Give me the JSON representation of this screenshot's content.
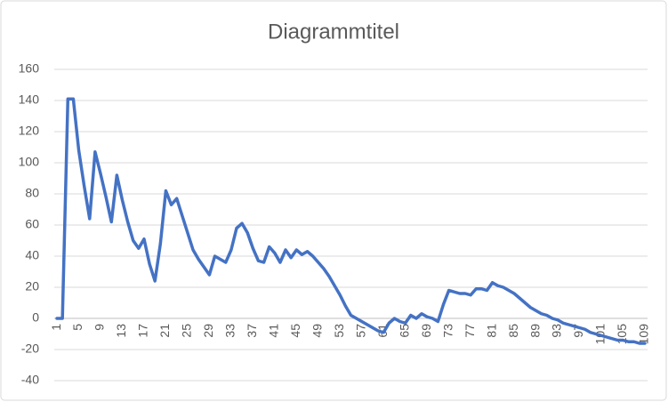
{
  "chart_data": {
    "type": "line",
    "title": "Diagrammtitel",
    "categories": [
      "1",
      null,
      null,
      null,
      "5",
      null,
      null,
      null,
      "9",
      null,
      null,
      null,
      "13",
      null,
      null,
      null,
      "17",
      null,
      null,
      null,
      "21",
      null,
      null,
      null,
      "25",
      null,
      null,
      null,
      "29",
      null,
      null,
      null,
      "33",
      null,
      null,
      null,
      "37",
      null,
      null,
      null,
      "41",
      null,
      null,
      null,
      "45",
      null,
      null,
      null,
      "49",
      null,
      null,
      null,
      "53",
      null,
      null,
      null,
      "57",
      null,
      null,
      null,
      "61",
      null,
      null,
      null,
      "65",
      null,
      null,
      null,
      "69",
      null,
      null,
      null,
      "73",
      null,
      null,
      null,
      "77",
      null,
      null,
      null,
      "81",
      null,
      null,
      null,
      "85",
      null,
      null,
      null,
      "89",
      null,
      null,
      null,
      "93",
      null,
      null,
      null,
      "97",
      null,
      null,
      null,
      "101",
      null,
      null,
      null,
      "105",
      null,
      null,
      null,
      "109"
    ],
    "series": [
      {
        "color": "#4472c4",
        "values": [
          0,
          0,
          141,
          141,
          108,
          85,
          64,
          107,
          93,
          78,
          62,
          92,
          76,
          62,
          50,
          45,
          51,
          35,
          24,
          48,
          82,
          73,
          77,
          66,
          55,
          44,
          38,
          33,
          28,
          40,
          38,
          36,
          44,
          58,
          61,
          55,
          45,
          37,
          36,
          46,
          42,
          36,
          44,
          39,
          44,
          41,
          43,
          40,
          36,
          32,
          27,
          21,
          15,
          8,
          2,
          0,
          -2,
          -4,
          -6,
          -8,
          -9,
          -3,
          0,
          -2,
          -3,
          2,
          0,
          3,
          1,
          0,
          -2,
          9,
          18,
          17,
          16,
          16,
          15,
          19,
          19,
          18,
          23,
          21,
          20,
          18,
          16,
          13,
          10,
          7,
          5,
          3,
          2,
          0,
          -1,
          -3,
          -4,
          -5,
          -6,
          -7,
          -9,
          -10,
          -11,
          -12,
          -13,
          -14,
          -14,
          -15,
          -15,
          -16,
          -16
        ]
      }
    ],
    "ylim": [
      -40,
      160
    ],
    "yticks": [
      -40,
      -20,
      0,
      20,
      40,
      60,
      80,
      100,
      120,
      140,
      160
    ],
    "grid": true
  }
}
